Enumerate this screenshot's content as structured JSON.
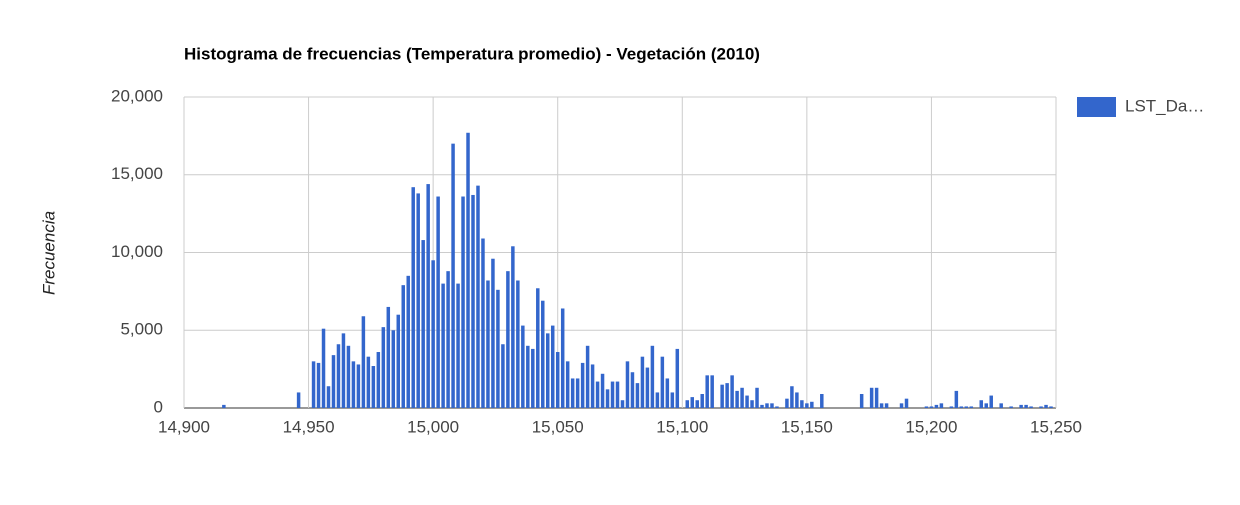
{
  "chart_data": {
    "type": "bar",
    "title": "Histograma de frecuencias (Temperatura promedio) - Vegetación (2010)",
    "y_label": "Frecuencia",
    "legend": "right",
    "series": [
      {
        "name": "LST_Da…",
        "color": "#3366cc",
        "x": [
          14916,
          14946,
          14952,
          14954,
          14956,
          14958,
          14960,
          14962,
          14964,
          14966,
          14968,
          14970,
          14972,
          14974,
          14976,
          14978,
          14980,
          14982,
          14984,
          14986,
          14988,
          14990,
          14992,
          14994,
          14996,
          14998,
          15000,
          15002,
          15004,
          15006,
          15008,
          15010,
          15012,
          15014,
          15016,
          15018,
          15020,
          15022,
          15024,
          15026,
          15028,
          15030,
          15032,
          15034,
          15036,
          15038,
          15040,
          15042,
          15044,
          15046,
          15048,
          15050,
          15052,
          15054,
          15056,
          15058,
          15060,
          15062,
          15064,
          15066,
          15068,
          15070,
          15072,
          15074,
          15076,
          15078,
          15080,
          15082,
          15084,
          15086,
          15088,
          15090,
          15092,
          15094,
          15096,
          15098,
          15102,
          15104,
          15106,
          15108,
          15110,
          15112,
          15116,
          15118,
          15120,
          15122,
          15124,
          15126,
          15128,
          15130,
          15132,
          15134,
          15136,
          15138,
          15142,
          15144,
          15146,
          15148,
          15150,
          15152,
          15156,
          15172,
          15176,
          15178,
          15180,
          15182,
          15188,
          15190,
          15198,
          15200,
          15202,
          15204,
          15208,
          15210,
          15212,
          15214,
          15216,
          15220,
          15222,
          15224,
          15228,
          15232,
          15236,
          15238,
          15240,
          15244,
          15246,
          15248
        ],
        "values": [
          200,
          1000,
          3000,
          2900,
          5100,
          1400,
          3400,
          4100,
          4800,
          4000,
          3000,
          2800,
          5900,
          3300,
          2700,
          3600,
          5200,
          6500,
          5000,
          6000,
          7900,
          8500,
          14200,
          13800,
          10800,
          14400,
          9500,
          13600,
          8000,
          8800,
          17000,
          8000,
          13600,
          17700,
          13700,
          14300,
          10900,
          8200,
          9600,
          7600,
          4100,
          8800,
          10400,
          8200,
          5300,
          4000,
          3800,
          7700,
          6900,
          4800,
          5300,
          3600,
          6400,
          3000,
          1900,
          1900,
          2900,
          4000,
          2800,
          1700,
          2200,
          1200,
          1700,
          1700,
          500,
          3000,
          2300,
          1600,
          3300,
          2600,
          4000,
          1000,
          3300,
          1900,
          1000,
          3800,
          500,
          700,
          500,
          900,
          2100,
          2100,
          1500,
          1600,
          2100,
          1100,
          1300,
          800,
          500,
          1300,
          200,
          300,
          300,
          100,
          600,
          1400,
          1000,
          500,
          300,
          400,
          900,
          900,
          1300,
          1300,
          300,
          300,
          300,
          600,
          100,
          100,
          200,
          300,
          100,
          1100,
          100,
          100,
          100,
          500,
          300,
          800,
          300,
          100,
          200,
          200,
          100,
          100,
          200,
          100
        ]
      }
    ],
    "xlim": [
      14900,
      15250
    ],
    "xticks": [
      {
        "value": 14900,
        "label": "14,900"
      },
      {
        "value": 14950,
        "label": "14,950"
      },
      {
        "value": 15000,
        "label": "15,000"
      },
      {
        "value": 15050,
        "label": "15,050"
      },
      {
        "value": 15100,
        "label": "15,100"
      },
      {
        "value": 15150,
        "label": "15,150"
      },
      {
        "value": 15200,
        "label": "15,200"
      },
      {
        "value": 15250,
        "label": "15,250"
      }
    ],
    "ylim": [
      0,
      20000
    ],
    "yticks": [
      0,
      {
        "value": 5000,
        "label": "5,000"
      },
      {
        "value": 10000,
        "label": "10,000"
      },
      {
        "value": 15000,
        "label": "15,000"
      },
      {
        "value": 20000,
        "label": "20,000"
      }
    ],
    "grid": true
  }
}
